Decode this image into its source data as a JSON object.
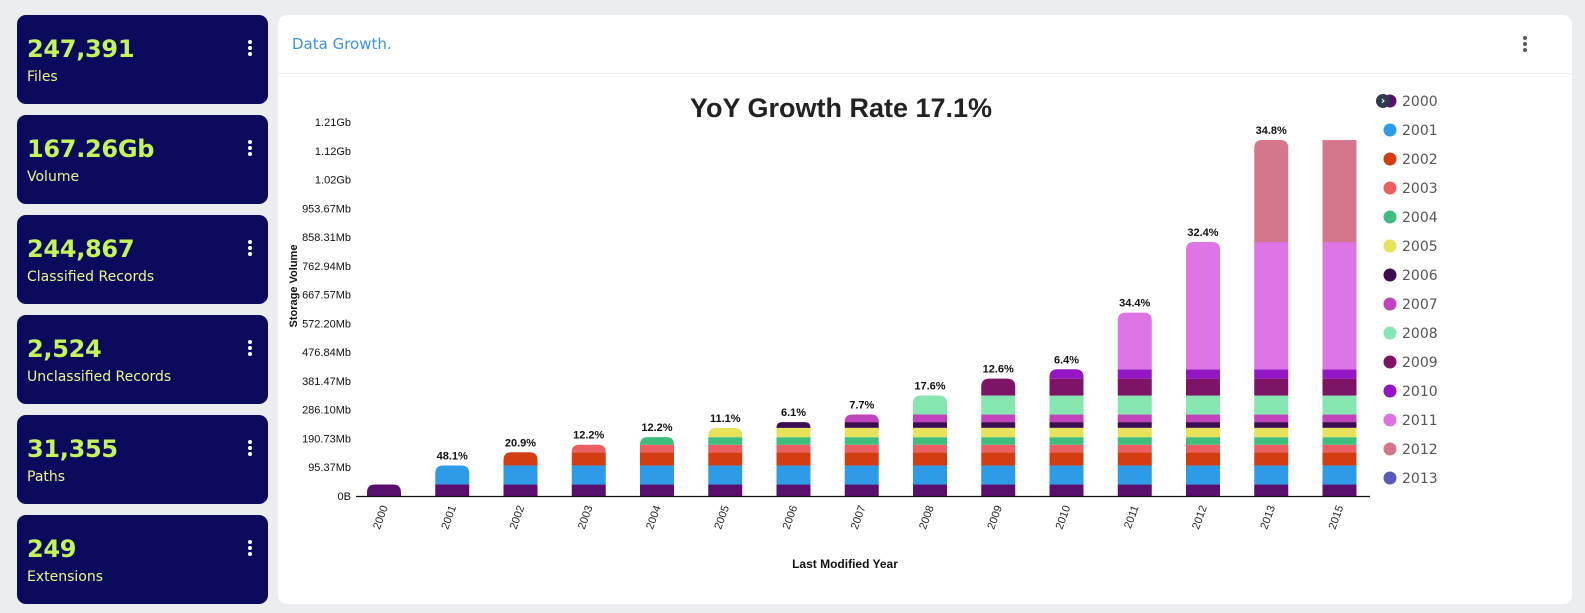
{
  "stats": [
    {
      "value": "247,391",
      "label": "Files"
    },
    {
      "value": "167.26Gb",
      "label": "Volume"
    },
    {
      "value": "244,867",
      "label": "Classified Records"
    },
    {
      "value": "2,524",
      "label": "Unclassified Records"
    },
    {
      "value": "31,355",
      "label": "Paths"
    },
    {
      "value": "249",
      "label": "Extensions"
    }
  ],
  "panel": {
    "title": "Data Growth.",
    "menu_icon": "kebab-menu-icon"
  },
  "legend": {
    "nav_icon": "chevron-right-icon",
    "nav_glyph": "›"
  },
  "colors": {
    "card_bg": "#0b0a5c",
    "stat_value": "#c3f55a",
    "stat_label": "#eef58a",
    "panel_title": "#3b93e6"
  },
  "chart_data": {
    "type": "bar",
    "stacked": true,
    "title": "YoY Growth Rate 17.1%",
    "xlabel": "Last Modified Year",
    "ylabel": "Storage Volume",
    "y_ticks": [
      "0B",
      "95.37Mb",
      "190.73Mb",
      "286.10Mb",
      "381.47Mb",
      "476.84Mb",
      "572.20Mb",
      "667.57Mb",
      "762.94Mb",
      "858.31Mb",
      "953.67Mb",
      "1.02Gb",
      "1.12Gb",
      "1.21Gb"
    ],
    "y_tick_step_mb": 95.37,
    "ylim_mb": [
      0,
      1239.81
    ],
    "legend_position": "right",
    "categories": [
      "2000",
      "2001",
      "2002",
      "2003",
      "2004",
      "2005",
      "2006",
      "2007",
      "2008",
      "2009",
      "2010",
      "2011",
      "2012",
      "2013",
      "2015"
    ],
    "growth_labels": [
      "",
      "48.1%",
      "20.9%",
      "12.2%",
      "12.2%",
      "11.1%",
      "6.1%",
      "7.7%",
      "17.6%",
      "12.6%",
      "6.4%",
      "34.4%",
      "32.4%",
      "34.8%",
      ""
    ],
    "series": [
      {
        "name": "2000",
        "color": "#5a0f6e",
        "values": [
          38,
          38,
          38,
          38,
          38,
          38,
          38,
          38,
          38,
          38,
          38,
          38,
          38,
          38,
          38
        ]
      },
      {
        "name": "2001",
        "color": "#2d9be8",
        "values": [
          0,
          63,
          63,
          63,
          63,
          63,
          63,
          63,
          63,
          63,
          63,
          63,
          63,
          63,
          63
        ]
      },
      {
        "name": "2002",
        "color": "#d43d12",
        "values": [
          0,
          0,
          44,
          44,
          44,
          44,
          44,
          44,
          44,
          44,
          44,
          44,
          44,
          44,
          44
        ]
      },
      {
        "name": "2003",
        "color": "#ee5f63",
        "values": [
          0,
          0,
          0,
          25,
          25,
          25,
          25,
          25,
          25,
          25,
          25,
          25,
          25,
          25,
          25
        ]
      },
      {
        "name": "2004",
        "color": "#3fbd7c",
        "values": [
          0,
          0,
          0,
          0,
          25,
          25,
          25,
          25,
          25,
          25,
          25,
          25,
          25,
          25,
          25
        ]
      },
      {
        "name": "2005",
        "color": "#e6e35a",
        "values": [
          0,
          0,
          0,
          0,
          0,
          31,
          31,
          31,
          31,
          31,
          31,
          31,
          31,
          31,
          31
        ]
      },
      {
        "name": "2006",
        "color": "#3d0d52",
        "values": [
          0,
          0,
          0,
          0,
          0,
          0,
          19,
          19,
          19,
          19,
          19,
          19,
          19,
          19,
          19
        ]
      },
      {
        "name": "2007",
        "color": "#c243bd",
        "values": [
          0,
          0,
          0,
          0,
          0,
          0,
          0,
          25,
          25,
          25,
          25,
          25,
          25,
          25,
          25
        ]
      },
      {
        "name": "2008",
        "color": "#86e6b0",
        "values": [
          0,
          0,
          0,
          0,
          0,
          0,
          0,
          0,
          63,
          63,
          63,
          63,
          63,
          63,
          63
        ]
      },
      {
        "name": "2009",
        "color": "#7d1468",
        "values": [
          0,
          0,
          0,
          0,
          0,
          0,
          0,
          0,
          0,
          56,
          56,
          56,
          56,
          56,
          56
        ]
      },
      {
        "name": "2010",
        "color": "#9315c4",
        "values": [
          0,
          0,
          0,
          0,
          0,
          0,
          0,
          0,
          0,
          0,
          31,
          31,
          31,
          31,
          31
        ]
      },
      {
        "name": "2011",
        "color": "#dd74e3",
        "values": [
          0,
          0,
          0,
          0,
          0,
          0,
          0,
          0,
          0,
          0,
          0,
          188,
          422,
          422,
          422
        ]
      },
      {
        "name": "2012",
        "color": "#d5778c",
        "values": [
          0,
          0,
          0,
          0,
          0,
          0,
          0,
          0,
          0,
          0,
          0,
          0,
          0,
          338,
          338
        ]
      },
      {
        "name": "2013",
        "color": "#5a5ab8",
        "values": [
          0,
          0,
          0,
          0,
          0,
          0,
          0,
          0,
          0,
          0,
          0,
          0,
          0,
          0,
          0
        ]
      }
    ]
  }
}
